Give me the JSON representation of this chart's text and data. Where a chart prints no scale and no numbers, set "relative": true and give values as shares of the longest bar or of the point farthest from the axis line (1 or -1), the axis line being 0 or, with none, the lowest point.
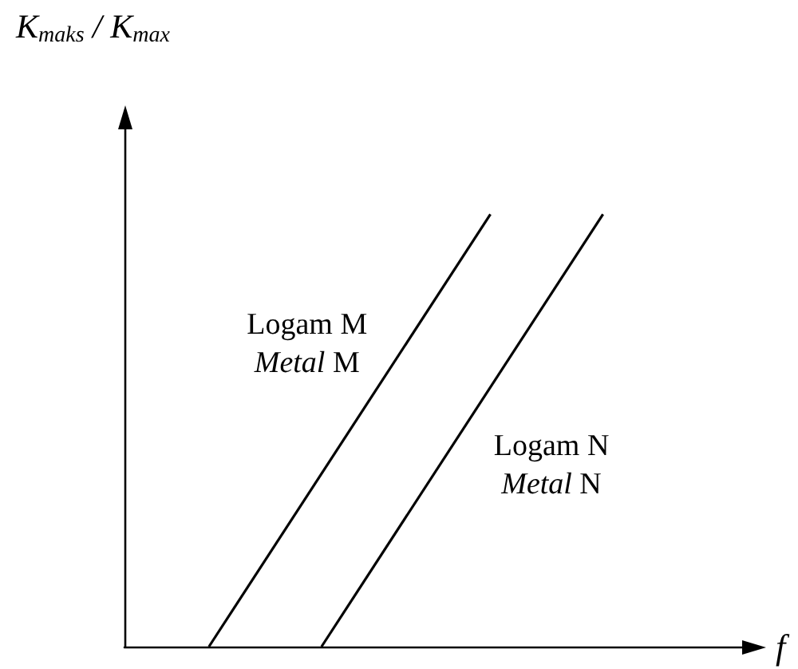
{
  "chart_data": {
    "type": "line",
    "relative": true,
    "xlabel": "f",
    "ylabel": "K$_{maks}$ / K$_{max}$",
    "marker": "none",
    "line_style": "solid",
    "legend": false,
    "grid": false,
    "categories": [
      null,
      null,
      null,
      null,
      null,
      null,
      null,
      null,
      null,
      null,
      null,
      null,
      null,
      null,
      null,
      null,
      null,
      null,
      null,
      null,
      null,
      null,
      null
    ],
    "series": [
      {
        "name": "Logam M\nMetal M",
        "color": "#000000",
        "values": [
          null,
          null,
          null,
          0,
          null,
          null,
          null,
          null,
          null,
          null,
          null,
          null,
          null,
          1,
          null,
          null,
          null,
          null,
          null,
          null,
          null,
          null,
          null
        ]
      },
      {
        "name": "Logam N\nMetal N",
        "color": "#000000",
        "values": [
          null,
          null,
          null,
          null,
          null,
          null,
          null,
          0,
          null,
          null,
          null,
          null,
          null,
          null,
          null,
          null,
          null,
          1,
          null,
          null,
          null,
          null,
          null
        ]
      }
    ]
  }
}
